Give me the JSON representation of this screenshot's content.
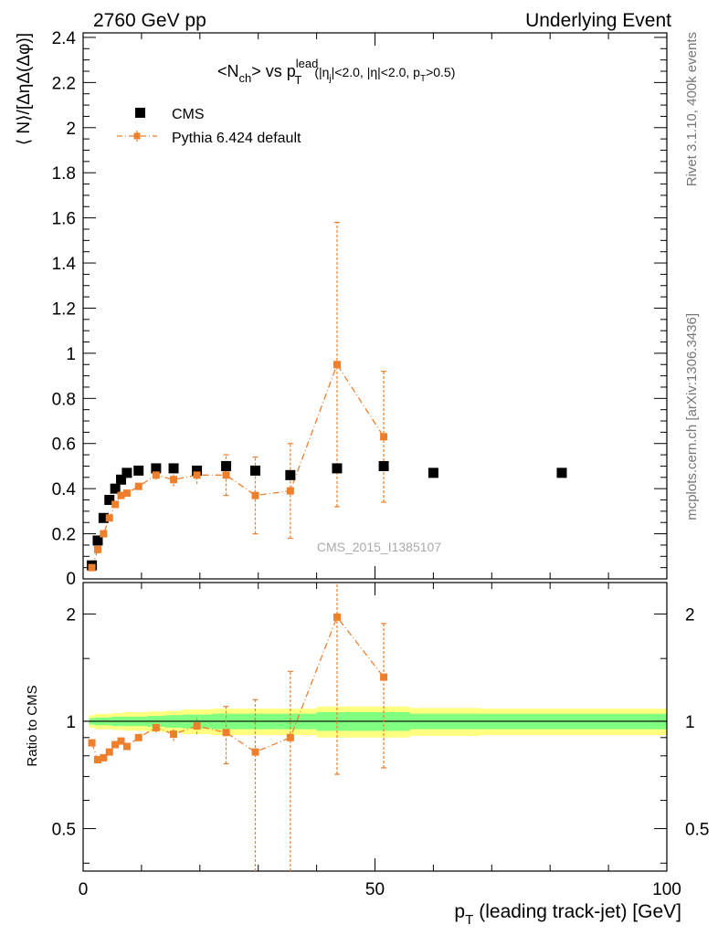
{
  "header": {
    "left": "2760 GeV pp",
    "right": "Underlying Event"
  },
  "side_text": {
    "upper": "Rivet 3.1.10,  400k events",
    "lower": "mcplots.cern.ch [arXiv:1306.3436]"
  },
  "watermark": "CMS_2015_I1385107",
  "colors": {
    "data": "#000000",
    "mc": "#ee7f2d",
    "band_inner": "#80ff80",
    "band_outer": "#ffff80"
  },
  "chart_data": [
    {
      "type": "scatter",
      "title_parts": {
        "lhs": "<N",
        "lhs_sub": "ch",
        "mid": "> vs p",
        "sup": "lead",
        "sub": "T",
        "cut1": "(|η",
        "cut1_sub": "j",
        "cut2": "|<2.0, |η|<2.0, p",
        "cut2_sub": "T",
        "cut3": ">0.5)"
      },
      "ylabel": "⟨ N⟩/[ΔηΔ(Δφ)]",
      "xlim": [
        0,
        100
      ],
      "ylim": [
        0,
        2.42
      ],
      "y_ticks": [
        {
          "v": 0.2,
          "label": "0.2"
        },
        {
          "v": 0.4,
          "label": "0.4"
        },
        {
          "v": 0.6,
          "label": "0.6"
        },
        {
          "v": 0.8,
          "label": "0.8"
        },
        {
          "v": 1.0,
          "label": "1"
        },
        {
          "v": 1.2,
          "label": "1.2"
        },
        {
          "v": 1.4,
          "label": "1.4"
        },
        {
          "v": 1.6,
          "label": "1.6"
        },
        {
          "v": 1.8,
          "label": "1.8"
        },
        {
          "v": 2.0,
          "label": "2"
        },
        {
          "v": 2.2,
          "label": "2.2"
        },
        {
          "v": 2.4,
          "label": "2.4"
        }
      ],
      "y_zero_label": "0",
      "legend_placement": "top-left",
      "series": [
        {
          "name": "CMS",
          "style": "square-marker",
          "x": [
            1.5,
            2.5,
            3.5,
            4.5,
            5.5,
            6.5,
            7.5,
            9.5,
            12.5,
            15.5,
            19.5,
            24.5,
            29.5,
            35.5,
            43.5,
            51.5,
            60.0,
            82.0
          ],
          "y": [
            0.06,
            0.17,
            0.27,
            0.35,
            0.4,
            0.44,
            0.47,
            0.48,
            0.49,
            0.49,
            0.48,
            0.5,
            0.48,
            0.46,
            0.49,
            0.5,
            0.47,
            0.47
          ]
        },
        {
          "name": "Pythia 6.424 default",
          "style": "dash-dot-line-with-markers",
          "x": [
            1.5,
            2.5,
            3.5,
            4.5,
            5.5,
            6.5,
            7.5,
            9.5,
            12.5,
            15.5,
            19.5,
            24.5,
            29.5,
            35.5,
            43.5,
            51.5
          ],
          "y": [
            0.05,
            0.13,
            0.2,
            0.27,
            0.33,
            0.37,
            0.38,
            0.41,
            0.46,
            0.44,
            0.46,
            0.46,
            0.37,
            0.39,
            0.95,
            0.63
          ],
          "err": [
            0.005,
            0.01,
            0.01,
            0.01,
            0.01,
            0.01,
            0.01,
            0.01,
            0.02,
            0.03,
            0.04,
            0.09,
            0.17,
            0.21,
            0.63,
            0.29
          ]
        }
      ]
    },
    {
      "type": "scatter",
      "ylabel": "Ratio to CMS",
      "xlabel": "p",
      "xlabel_sub": "T",
      "xlabel_rest": "(leading track-jet) [GeV]",
      "xlim": [
        0,
        100
      ],
      "ylim": [
        0.38,
        2.45
      ],
      "x_ticks": [
        {
          "v": 0,
          "label": "0"
        },
        {
          "v": 50,
          "label": "50"
        },
        {
          "v": 100,
          "label": "100"
        }
      ],
      "y_ticks": [
        {
          "v": 0.5,
          "label": "0.5"
        },
        {
          "v": 1,
          "label": "1"
        },
        {
          "v": 2,
          "label": "2"
        }
      ],
      "log_y": true,
      "reference_line": 1,
      "bands": {
        "x": [
          1,
          2,
          3,
          4,
          5,
          6,
          7,
          8,
          11,
          14,
          17,
          22,
          27,
          32,
          40,
          48,
          56,
          68,
          100
        ],
        "inner": [
          0.02,
          0.025,
          0.025,
          0.025,
          0.03,
          0.03,
          0.03,
          0.03,
          0.035,
          0.04,
          0.045,
          0.05,
          0.05,
          0.05,
          0.06,
          0.06,
          0.05,
          0.05
        ],
        "outer": [
          0.04,
          0.05,
          0.05,
          0.05,
          0.055,
          0.055,
          0.06,
          0.06,
          0.065,
          0.07,
          0.08,
          0.085,
          0.085,
          0.085,
          0.1,
          0.1,
          0.09,
          0.085
        ]
      },
      "series": [
        {
          "name": "Pythia 6.424 default",
          "x": [
            1.5,
            2.5,
            3.5,
            4.5,
            5.5,
            6.5,
            7.5,
            9.5,
            12.5,
            15.5,
            19.5,
            24.5,
            29.5,
            35.5,
            43.5,
            51.5
          ],
          "y": [
            0.87,
            0.78,
            0.79,
            0.82,
            0.86,
            0.88,
            0.85,
            0.9,
            0.96,
            0.92,
            0.97,
            0.93,
            0.82,
            0.9,
            1.96,
            1.33
          ],
          "err_low": [
            0.01,
            0.01,
            0.01,
            0.01,
            0.01,
            0.01,
            0.01,
            0.01,
            0.03,
            0.04,
            0.05,
            0.17,
            0.45,
            0.55,
            1.25,
            0.59
          ],
          "err_high": [
            0.01,
            0.01,
            0.01,
            0.01,
            0.01,
            0.01,
            0.01,
            0.01,
            0.03,
            0.04,
            0.05,
            0.17,
            0.33,
            0.48,
            0.6,
            0.55
          ]
        }
      ]
    }
  ]
}
